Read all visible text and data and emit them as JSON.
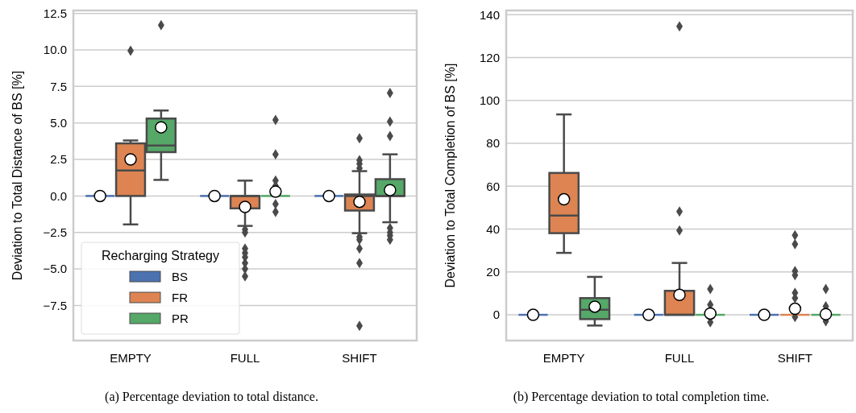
{
  "chart_data": [
    {
      "type": "box",
      "ylabel": "Deviation to Total Distance of BS [%]",
      "categories": [
        "EMPTY",
        "FULL",
        "SHIFT"
      ],
      "ylim": [
        -9.9,
        12.7
      ],
      "yticks": [
        {
          "value": -7.5,
          "label": "−7.5"
        },
        {
          "value": -5,
          "label": "−5.0"
        },
        {
          "value": -2.5,
          "label": "−2.5"
        },
        {
          "value": 0,
          "label": "0.0"
        },
        2.5,
        {
          "value": 5,
          "label": "5.0"
        },
        7.5,
        {
          "value": 10,
          "label": "10.0"
        },
        12.5
      ],
      "grid": "y",
      "legend": "bottom left",
      "legend_title": "Recharging Strategy",
      "marker": "diamond",
      "annotations": [
        "(a) Percentage deviation to total distance."
      ],
      "series": [
        {
          "name": "BS",
          "color": "#4c72b0",
          "boxes": [
            {
              "low": 0,
              "q1": 0,
              "median": 0,
              "q3": 0,
              "high": 0,
              "mean": 0
            },
            {
              "low": 0,
              "q1": 0,
              "median": 0,
              "q3": 0,
              "high": 0,
              "mean": 0
            },
            {
              "low": 0,
              "q1": 0,
              "median": 0,
              "q3": 0,
              "high": 0,
              "mean": 0
            }
          ]
        },
        {
          "name": "FR",
          "color": "#dd8452",
          "boxes": [
            {
              "low": -1.95,
              "q1": 0,
              "median": 1.75,
              "q3": 3.6,
              "high": 3.8,
              "mean": 2.5,
              "outliers": [
                9.95
              ]
            },
            {
              "low": -2.05,
              "q1": -0.85,
              "median": 0,
              "q3": 0,
              "high": 1.05,
              "mean": -0.75,
              "outliers": [
                -2.3,
                -2.5,
                -3.6,
                -3.9,
                -4.2,
                -4.6,
                -5.0,
                -5.5
              ]
            },
            {
              "low": -2.55,
              "q1": -1.0,
              "median": 0,
              "q3": 0.1,
              "high": 1.7,
              "mean": -0.4,
              "outliers": [
                3.95,
                2.45,
                2.2,
                1.9,
                -2.8,
                -3.0,
                -3.6,
                -4.6,
                -8.9
              ]
            }
          ]
        },
        {
          "name": "PR",
          "color": "#55a868",
          "boxes": [
            {
              "low": 1.1,
              "q1": 3.0,
              "median": 3.45,
              "q3": 5.3,
              "high": 5.85,
              "mean": 4.7,
              "outliers": [
                11.7
              ]
            },
            {
              "low": 0,
              "q1": 0,
              "median": 0,
              "q3": 0,
              "high": 0,
              "mean": 0.3,
              "outliers": [
                5.2,
                2.85,
                1.05,
                0.7,
                -0.55,
                -1.1
              ]
            },
            {
              "low": -1.8,
              "q1": 0,
              "median": 0,
              "q3": 1.15,
              "high": 2.85,
              "mean": 0.4,
              "outliers": [
                7.05,
                5.1,
                4.1,
                -2.2,
                -2.5,
                -2.7,
                -3.0
              ]
            }
          ]
        }
      ]
    },
    {
      "type": "box",
      "ylabel": "Deviation to Total Completion of BS [%]",
      "categories": [
        "EMPTY",
        "FULL",
        "SHIFT"
      ],
      "ylim": [
        -12,
        142
      ],
      "yticks": [
        0,
        20,
        40,
        60,
        80,
        100,
        120,
        140
      ],
      "grid": "y",
      "marker": "diamond",
      "annotations": [
        "(b) Percentage deviation to total completion time."
      ],
      "series": [
        {
          "color": "#4c72b0",
          "boxes": [
            {
              "low": 0,
              "q1": 0,
              "median": 0,
              "q3": 0,
              "high": 0,
              "mean": 0
            },
            {
              "low": 0,
              "q1": 0,
              "median": 0,
              "q3": 0,
              "high": 0,
              "mean": 0
            },
            {
              "low": 0,
              "q1": 0,
              "median": 0,
              "q3": 0,
              "high": 0,
              "mean": 0
            }
          ]
        },
        {
          "color": "#dd8452",
          "boxes": [
            {
              "low": 28.9,
              "q1": 38.1,
              "median": 46.3,
              "q3": 66.2,
              "high": 93.5,
              "mean": 53.9
            },
            {
              "low": 0,
              "q1": 0,
              "median": 0,
              "q3": 11.2,
              "high": 24.2,
              "mean": 9.3,
              "outliers": [
                134.6,
                48.2,
                39.4
              ]
            },
            {
              "low": 0,
              "q1": 0,
              "median": 0,
              "q3": 0,
              "high": 0,
              "mean": 2.8,
              "outliers": [
                37.1,
                33.0,
                20.4,
                18.5,
                10.3,
                7.8,
                -1.0
              ]
            }
          ]
        },
        {
          "color": "#55a868",
          "boxes": [
            {
              "low": -5.0,
              "q1": -2.0,
              "median": 2.4,
              "q3": 7.8,
              "high": 17.7,
              "mean": 3.8
            },
            {
              "low": 0,
              "q1": 0,
              "median": 0,
              "q3": 0,
              "high": 0,
              "mean": 0.6,
              "outliers": [
                12,
                4.7,
                -3.5
              ]
            },
            {
              "low": 0,
              "q1": 0,
              "median": 0,
              "q3": 0,
              "high": 0,
              "mean": 0.3,
              "outliers": [
                12,
                4,
                -3
              ]
            }
          ]
        }
      ]
    }
  ]
}
